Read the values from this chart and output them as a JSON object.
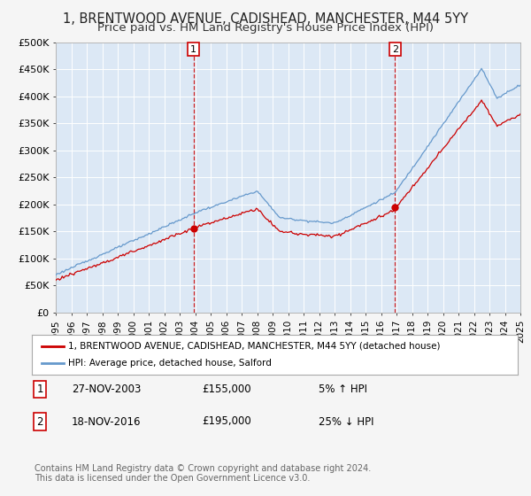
{
  "title": "1, BRENTWOOD AVENUE, CADISHEAD, MANCHESTER, M44 5YY",
  "subtitle": "Price paid vs. HM Land Registry's House Price Index (HPI)",
  "title_fontsize": 10.5,
  "subtitle_fontsize": 9.5,
  "background_color": "#f5f5f5",
  "plot_bg_color": "#dce8f5",
  "ylabel_ticks": [
    "£0",
    "£50K",
    "£100K",
    "£150K",
    "£200K",
    "£250K",
    "£300K",
    "£350K",
    "£400K",
    "£450K",
    "£500K"
  ],
  "ytick_values": [
    0,
    50000,
    100000,
    150000,
    200000,
    250000,
    300000,
    350000,
    400000,
    450000,
    500000
  ],
  "ylim": [
    0,
    500000
  ],
  "legend_label_red": "1, BRENTWOOD AVENUE, CADISHEAD, MANCHESTER, M44 5YY (detached house)",
  "legend_label_blue": "HPI: Average price, detached house, Salford",
  "sale1_label": "1",
  "sale1_date": "27-NOV-2003",
  "sale1_price": "£155,000",
  "sale1_hpi": "5% ↑ HPI",
  "sale1_year": 2003.9,
  "sale1_value": 155000,
  "sale2_label": "2",
  "sale2_date": "18-NOV-2016",
  "sale2_price": "£195,000",
  "sale2_hpi": "25% ↓ HPI",
  "sale2_year": 2016.9,
  "sale2_value": 195000,
  "footnote": "Contains HM Land Registry data © Crown copyright and database right 2024.\nThis data is licensed under the Open Government Licence v3.0.",
  "red_color": "#cc0000",
  "blue_color": "#6699cc",
  "grid_color": "#ffffff"
}
